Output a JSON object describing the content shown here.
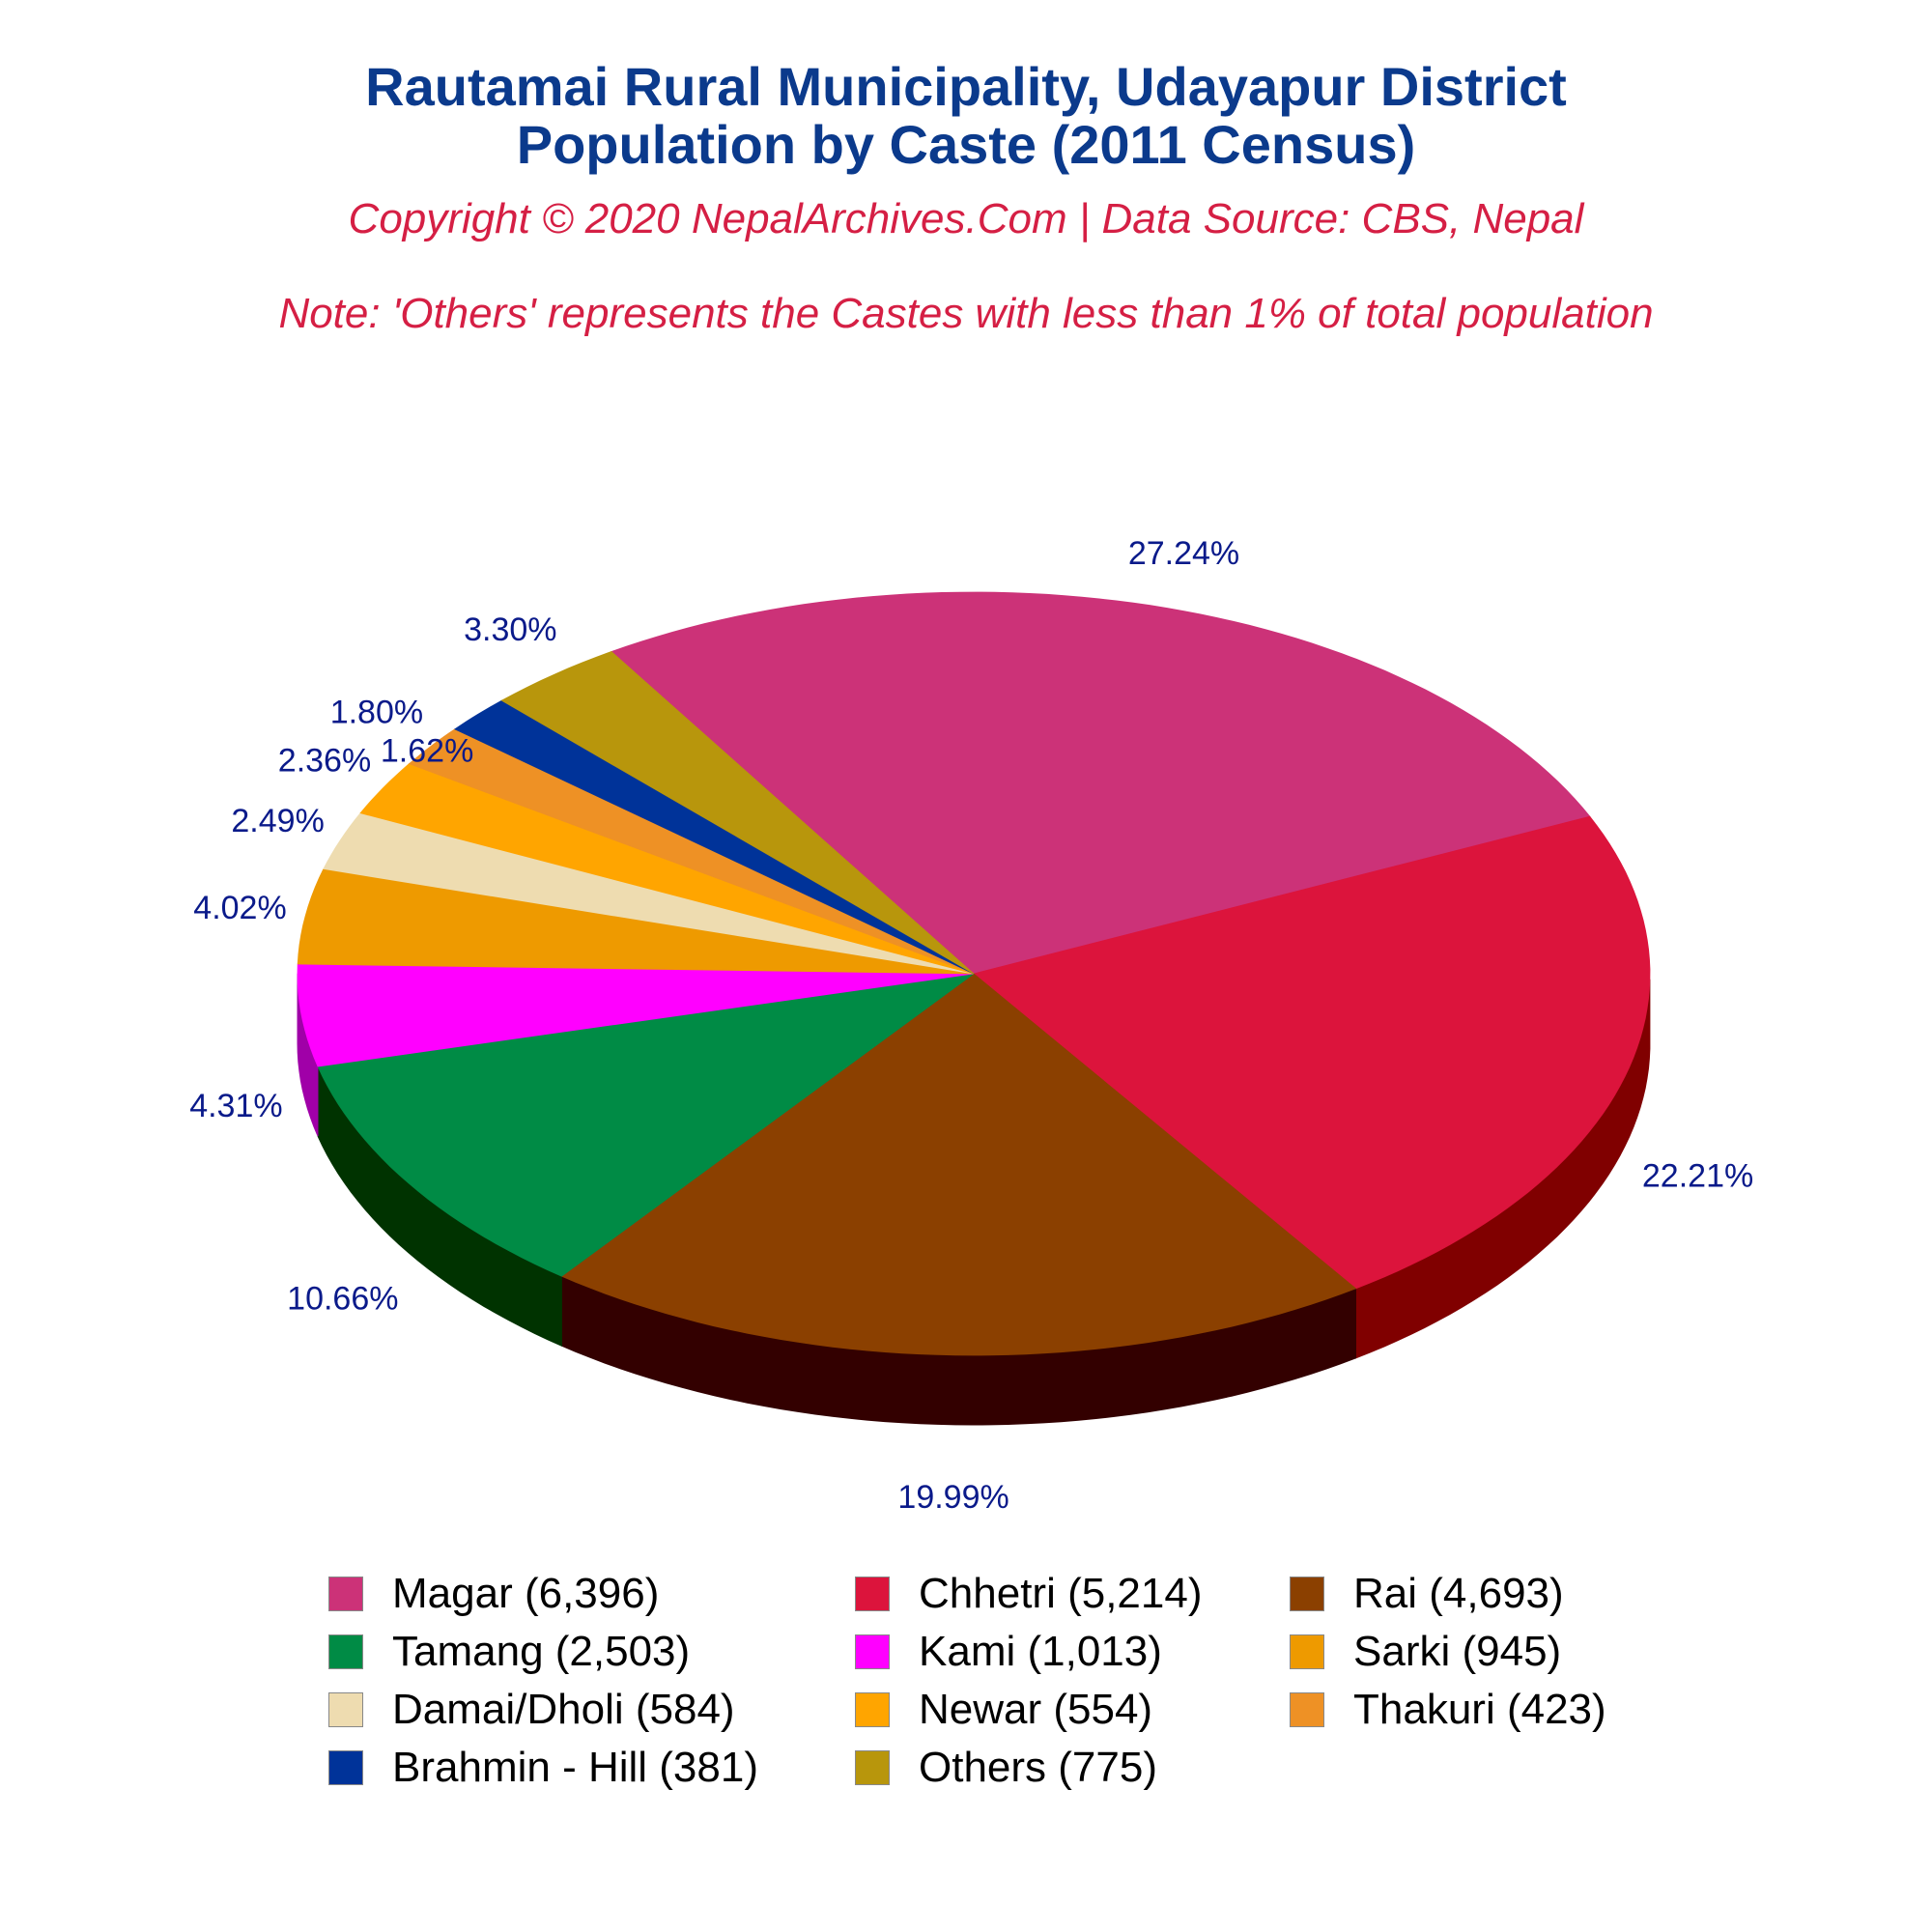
{
  "header": {
    "title_line1": "Rautamai Rural Municipality, Udayapur District",
    "title_line2": "Population by Caste (2011 Census)",
    "subtitle": "Copyright © 2020 NepalArchives.Com | Data Source: CBS, Nepal",
    "note": "Note: 'Others' represents the Castes with less than 1% of total population"
  },
  "chart_data": {
    "type": "pie",
    "style": "3d",
    "title": "Rautamai Rural Municipality, Udayapur District Population by Caste (2011 Census)",
    "legend_position": "bottom",
    "slices": [
      {
        "name": "Magar",
        "value": 6396,
        "percent_label": "27.24%",
        "legend_label": "Magar (6,396)",
        "color": "#cc3278",
        "side_color": "#7a1d48"
      },
      {
        "name": "Chhetri",
        "value": 5214,
        "percent_label": "22.21%",
        "legend_label": "Chhetri (5,214)",
        "color": "#dc143c",
        "side_color": "#800000"
      },
      {
        "name": "Rai",
        "value": 4693,
        "percent_label": "19.99%",
        "legend_label": "Rai (4,693)",
        "color": "#8b4000",
        "side_color": "#330000"
      },
      {
        "name": "Tamang",
        "value": 2503,
        "percent_label": "10.66%",
        "legend_label": "Tamang (2,503)",
        "color": "#008b45",
        "side_color": "#003300"
      },
      {
        "name": "Kami",
        "value": 1013,
        "percent_label": "4.31%",
        "legend_label": "Kami (1,013)",
        "color": "#ff00ff",
        "side_color": "#a000a8"
      },
      {
        "name": "Sarki",
        "value": 945,
        "percent_label": "4.02%",
        "legend_label": "Sarki (945)",
        "color": "#ee9a00",
        "side_color": "#8b3a00"
      },
      {
        "name": "Damai/Dholi",
        "value": 584,
        "percent_label": "2.49%",
        "legend_label": "Damai/Dholi (584)",
        "color": "#eedcb0",
        "side_color": "#8b7f60"
      },
      {
        "name": "Newar",
        "value": 554,
        "percent_label": "2.36%",
        "legend_label": "Newar (554)",
        "color": "#ffa500",
        "side_color": "#995c00"
      },
      {
        "name": "Thakuri",
        "value": 423,
        "percent_label": "1.80%",
        "legend_label": "Thakuri (423)",
        "color": "#ee9125",
        "side_color": "#8b5214"
      },
      {
        "name": "Brahmin - Hill",
        "value": 381,
        "percent_label": "1.62%",
        "legend_label": "Brahmin - Hill (381)",
        "color": "#003399",
        "side_color": "#001a4d"
      },
      {
        "name": "Others",
        "value": 775,
        "percent_label": "3.30%",
        "legend_label": "Others (775)",
        "color": "#b8960c",
        "side_color": "#6b5707"
      }
    ]
  }
}
